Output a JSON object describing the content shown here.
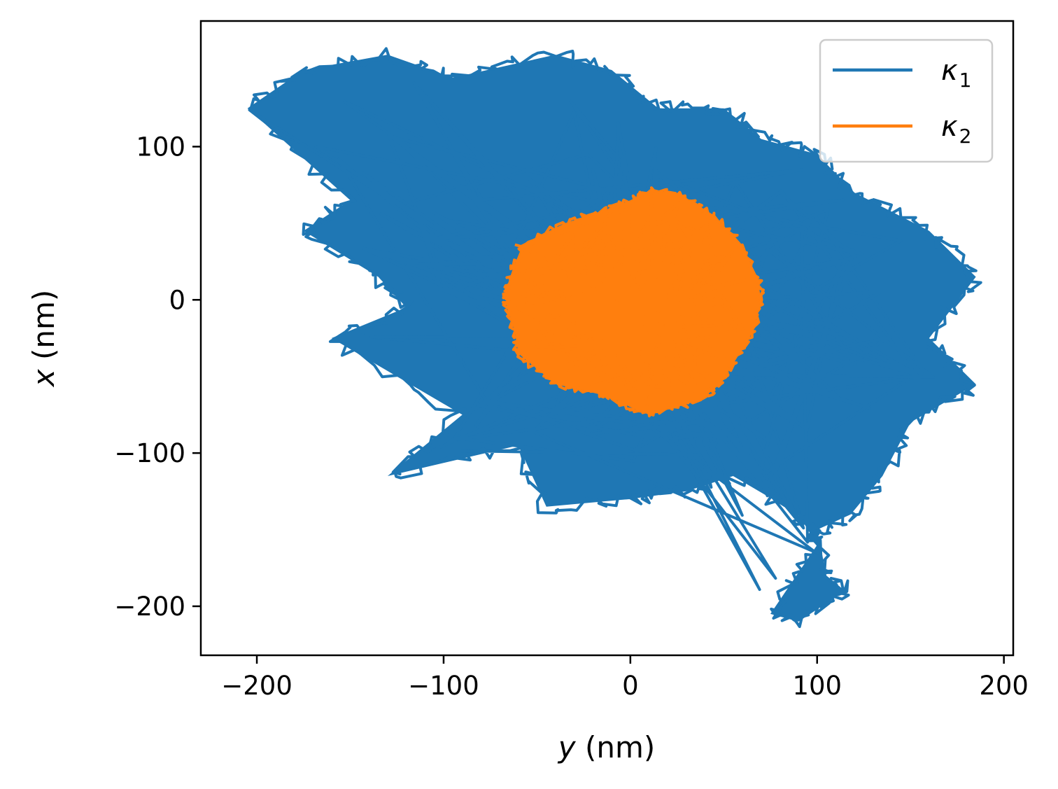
{
  "chart_data": {
    "type": "line",
    "title": "",
    "xlabel": {
      "var": "y",
      "unit": " (nm)"
    },
    "ylabel": {
      "var": "x",
      "unit": " (nm)"
    },
    "xlim": [
      -230,
      205
    ],
    "ylim": [
      -232,
      182
    ],
    "xticks": [
      -200,
      -100,
      0,
      100,
      200
    ],
    "yticks": [
      -200,
      -100,
      0,
      100
    ],
    "xtick_labels": [
      "−200",
      "−100",
      "0",
      "100",
      "200"
    ],
    "ytick_labels": [
      "−200",
      "−100",
      "0",
      "100"
    ],
    "grid": false,
    "legend_position": "top-right",
    "series": [
      {
        "name_base": "κ",
        "name_sub": "1",
        "color": "#1f77b4",
        "x": [
          -205,
          -175,
          -130,
          -95,
          -40,
          -10,
          15,
          50,
          70,
          100,
          120,
          160,
          185,
          160,
          185,
          150,
          135,
          118,
          100,
          105,
          115,
          90,
          75,
          100,
          90,
          55,
          30,
          0,
          -45,
          -60,
          -130,
          -90,
          -160,
          -120,
          -135,
          -175,
          -150,
          -205
        ],
        "y": [
          125,
          150,
          160,
          145,
          160,
          150,
          125,
          125,
          105,
          95,
          70,
          45,
          15,
          -25,
          -55,
          -80,
          -115,
          -140,
          -150,
          -180,
          -190,
          -210,
          -205,
          -160,
          -140,
          -115,
          -125,
          -130,
          -135,
          -95,
          -115,
          -75,
          -25,
          -5,
          15,
          45,
          65,
          125
        ]
      },
      {
        "name_base": "κ",
        "name_sub": "2",
        "color": "#ff7f0e",
        "x": [
          -60,
          -35,
          -15,
          0,
          12,
          28,
          45,
          60,
          68,
          70,
          66,
          56,
          48,
          38,
          25,
          10,
          0,
          -12,
          -22,
          -40,
          -50,
          -60,
          -62,
          -66,
          -67,
          -63,
          -58
        ],
        "y": [
          35,
          50,
          58,
          65,
          72,
          68,
          55,
          35,
          15,
          0,
          -20,
          -40,
          -55,
          -65,
          -70,
          -75,
          -70,
          -63,
          -60,
          -55,
          -45,
          -35,
          -20,
          -5,
          5,
          20,
          35
        ]
      }
    ]
  }
}
